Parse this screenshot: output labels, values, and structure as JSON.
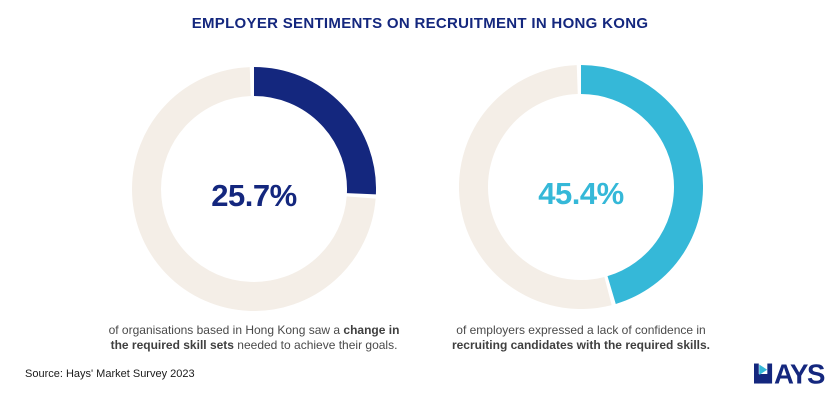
{
  "title": "EMPLOYER SENTIMENTS ON RECRUITMENT IN HONG KONG",
  "source": "Source: Hays' Market Survey 2023",
  "logo": {
    "text": "HAYS",
    "color": "#14277E",
    "accent_color": "#35B8D8"
  },
  "colors": {
    "navy": "#14277E",
    "cyan": "#35B8D8",
    "track_beige": "#F4EEE7",
    "caption_text": "#4A4A4A",
    "background": "#FFFFFF"
  },
  "chart_data": [
    {
      "type": "pie",
      "subtype": "donut",
      "label": "25.7%",
      "value": 25.7,
      "remainder": 74.3,
      "unit": "%",
      "color": "#14277E",
      "track_color": "#F4EEE7",
      "start_angle_deg": 0,
      "direction": "clockwise",
      "caption_lines": [
        [
          {
            "text": "of organisations based in Hong Kong saw a ",
            "bold": false
          },
          {
            "text": "change in",
            "bold": true
          }
        ],
        [
          {
            "text": "the required skill sets",
            "bold": true
          },
          {
            "text": " needed to achieve their goals.",
            "bold": false
          }
        ]
      ]
    },
    {
      "type": "pie",
      "subtype": "donut",
      "label": "45.4%",
      "value": 45.4,
      "remainder": 54.6,
      "unit": "%",
      "color": "#35B8D8",
      "track_color": "#F4EEE7",
      "start_angle_deg": 0,
      "direction": "clockwise",
      "caption_lines": [
        [
          {
            "text": "of employers expressed a lack of confidence in",
            "bold": false
          }
        ],
        [
          {
            "text": "recruiting candidates with the required skills.",
            "bold": true
          }
        ]
      ]
    }
  ]
}
